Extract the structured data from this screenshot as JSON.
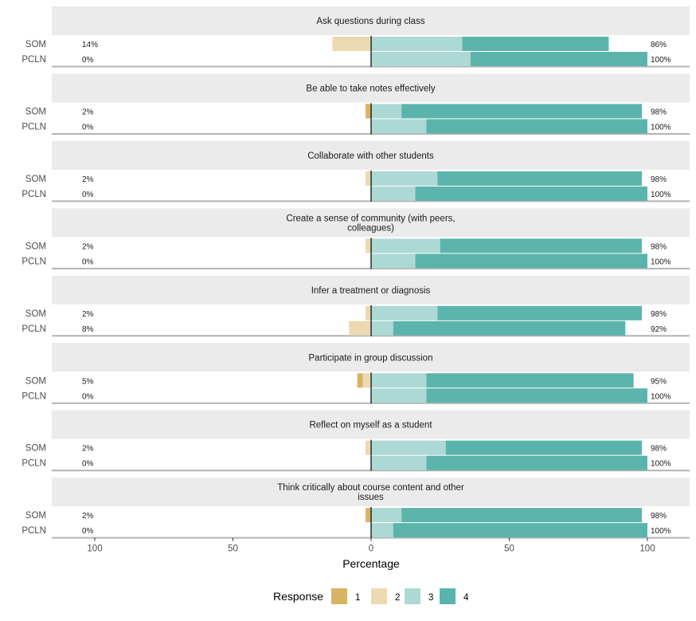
{
  "chart_data": {
    "type": "bar",
    "subtype": "diverging-stacked-likert",
    "orientation": "horizontal",
    "xlabel": "Percentage",
    "ylabel": "",
    "xlim": [
      -115,
      115
    ],
    "x_ticks": [
      -100,
      -50,
      0,
      50,
      100
    ],
    "x_tick_labels": [
      "100",
      "50",
      "0",
      "50",
      "100"
    ],
    "groups": [
      "SOM",
      "PCLN"
    ],
    "legend": {
      "title": "Response",
      "placement": "bottom",
      "levels": [
        "1",
        "2",
        "3",
        "4"
      ]
    },
    "colors": {
      "1": "#D8B365",
      "2": "#EBD9B2",
      "3": "#ADD9D5",
      "4": "#5AB4AC"
    },
    "panels": [
      {
        "title": [
          "Ask questions during class"
        ],
        "rows": [
          {
            "group": "SOM",
            "values": [
              0,
              14,
              33,
              53
            ],
            "left_label": "14%",
            "right_label": "86%"
          },
          {
            "group": "PCLN",
            "values": [
              0,
              0,
              36,
              64
            ],
            "left_label": "0%",
            "right_label": "100%"
          }
        ]
      },
      {
        "title": [
          "Be able to take notes effectively"
        ],
        "rows": [
          {
            "group": "SOM",
            "values": [
              2,
              0,
              11,
              87
            ],
            "left_label": "2%",
            "right_label": "98%"
          },
          {
            "group": "PCLN",
            "values": [
              0,
              0,
              20,
              80
            ],
            "left_label": "0%",
            "right_label": "100%"
          }
        ]
      },
      {
        "title": [
          "Collaborate with other students"
        ],
        "rows": [
          {
            "group": "SOM",
            "values": [
              0,
              2,
              24,
              74
            ],
            "left_label": "2%",
            "right_label": "98%"
          },
          {
            "group": "PCLN",
            "values": [
              0,
              0,
              16,
              84
            ],
            "left_label": "0%",
            "right_label": "100%"
          }
        ]
      },
      {
        "title": [
          "Create a sense of community (with peers,",
          "colleagues)"
        ],
        "rows": [
          {
            "group": "SOM",
            "values": [
              0,
              2,
              25,
              73
            ],
            "left_label": "2%",
            "right_label": "98%"
          },
          {
            "group": "PCLN",
            "values": [
              0,
              0,
              16,
              84
            ],
            "left_label": "0%",
            "right_label": "100%"
          }
        ]
      },
      {
        "title": [
          "Infer a treatment or diagnosis"
        ],
        "rows": [
          {
            "group": "SOM",
            "values": [
              0,
              2,
              24,
              74
            ],
            "left_label": "2%",
            "right_label": "98%"
          },
          {
            "group": "PCLN",
            "values": [
              0,
              8,
              8,
              84
            ],
            "left_label": "8%",
            "right_label": "92%"
          }
        ]
      },
      {
        "title": [
          "Participate in group discussion"
        ],
        "rows": [
          {
            "group": "SOM",
            "values": [
              2,
              3,
              20,
              75
            ],
            "left_label": "5%",
            "right_label": "95%"
          },
          {
            "group": "PCLN",
            "values": [
              0,
              0,
              20,
              80
            ],
            "left_label": "0%",
            "right_label": "100%"
          }
        ]
      },
      {
        "title": [
          "Reflect on myself as a student"
        ],
        "rows": [
          {
            "group": "SOM",
            "values": [
              0,
              2,
              27,
              71
            ],
            "left_label": "2%",
            "right_label": "98%"
          },
          {
            "group": "PCLN",
            "values": [
              0,
              0,
              20,
              80
            ],
            "left_label": "0%",
            "right_label": "100%"
          }
        ]
      },
      {
        "title": [
          "Think critically about course content and other",
          "issues"
        ],
        "rows": [
          {
            "group": "SOM",
            "values": [
              2,
              0,
              11,
              87
            ],
            "left_label": "2%",
            "right_label": "98%"
          },
          {
            "group": "PCLN",
            "values": [
              0,
              0,
              8,
              92
            ],
            "left_label": "0%",
            "right_label": "100%"
          }
        ]
      }
    ]
  }
}
